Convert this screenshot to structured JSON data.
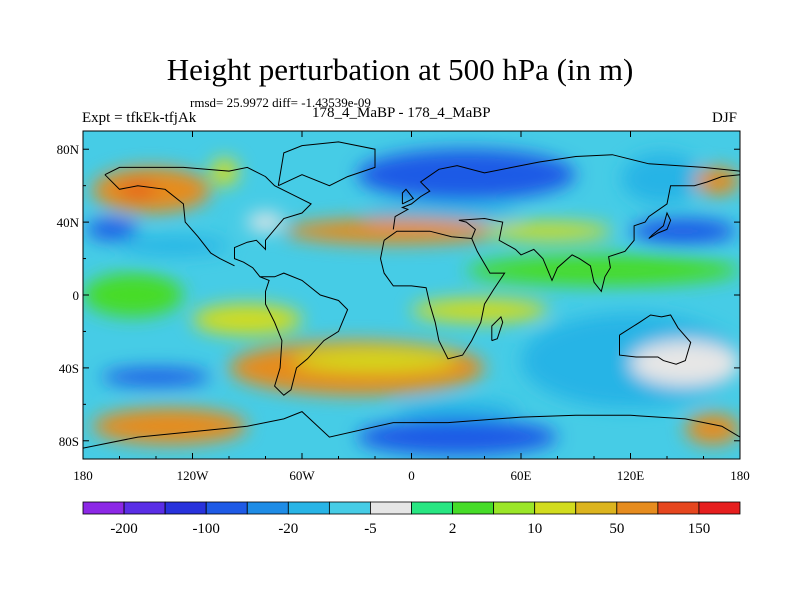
{
  "figure": {
    "title": "Height perturbation at 500 hPa (in m)",
    "stats": "rmsd= 25.9972 diff= -1.43539e-09",
    "left_label": "Expt = tfkEk-tfjAk",
    "center_label": "178_4_MaBP - 178_4_MaBP",
    "right_label": "DJF"
  },
  "chart_data": {
    "type": "heatmap",
    "title": "Height perturbation at 500 hPa (in m)",
    "x_ticks": [
      "180",
      "120W",
      "60W",
      "0",
      "60E",
      "120E",
      "180"
    ],
    "y_ticks": [
      "80N",
      "40N",
      "0",
      "40S",
      "80S"
    ],
    "xlim": [
      -180,
      180
    ],
    "ylim": [
      -90,
      90
    ],
    "x_tick_values": [
      -180,
      -120,
      -60,
      0,
      60,
      120,
      180
    ],
    "y_tick_values": [
      80,
      40,
      0,
      -40,
      -80
    ],
    "grid": false,
    "colorbar": {
      "labels": [
        "-200",
        "-100",
        "-20",
        "-5",
        "2",
        "10",
        "50",
        "150"
      ],
      "colors": [
        "#8c28e6",
        "#5a2ee6",
        "#2832dc",
        "#1e5ae6",
        "#1e8ce6",
        "#28b4e6",
        "#46cce6",
        "#e6e6e6",
        "#28e682",
        "#46dc28",
        "#9be628",
        "#d2dc1e",
        "#dcb41e",
        "#e68c1e",
        "#e6461e",
        "#e61e1e"
      ]
    },
    "regions": [
      {
        "lon": [
          -175,
          -110
        ],
        "lat": [
          70,
          45
        ],
        "level": "50"
      },
      {
        "lon": [
          -160,
          -140
        ],
        "lat": [
          60,
          55
        ],
        "level": "150"
      },
      {
        "lon": [
          -110,
          -95
        ],
        "lat": [
          75,
          60
        ],
        "level": "10"
      },
      {
        "lon": [
          -178,
          -150
        ],
        "lat": [
          42,
          30
        ],
        "level": "-100"
      },
      {
        "lon": [
          -160,
          -100
        ],
        "lat": [
          32,
          22
        ],
        "level": "-20"
      },
      {
        "lon": [
          -90,
          -70
        ],
        "lat": [
          45,
          35
        ],
        "level": "-5"
      },
      {
        "lon": [
          -30,
          90
        ],
        "lat": [
          80,
          52
        ],
        "level": "-100"
      },
      {
        "lon": [
          -25,
          60
        ],
        "lat": [
          50,
          40
        ],
        "level": "-20"
      },
      {
        "lon": [
          -70,
          50
        ],
        "lat": [
          42,
          28
        ],
        "level": "50"
      },
      {
        "lon": [
          40,
          110
        ],
        "lat": [
          40,
          30
        ],
        "level": "10"
      },
      {
        "lon": [
          115,
          160
        ],
        "lat": [
          78,
          50
        ],
        "level": "-20"
      },
      {
        "lon": [
          155,
          180
        ],
        "lat": [
          70,
          55
        ],
        "level": "50"
      },
      {
        "lon": [
          120,
          178
        ],
        "lat": [
          42,
          28
        ],
        "level": "-100"
      },
      {
        "lon": [
          -120,
          -60
        ],
        "lat": [
          -5,
          -22
        ],
        "level": "10"
      },
      {
        "lon": [
          -100,
          40
        ],
        "lat": [
          -25,
          -55
        ],
        "level": "50"
      },
      {
        "lon": [
          -65,
          25
        ],
        "lat": [
          -30,
          -42
        ],
        "level": "10"
      },
      {
        "lon": [
          -170,
          -110
        ],
        "lat": [
          -40,
          -50
        ],
        "level": "-100"
      },
      {
        "lon": [
          -175,
          -90
        ],
        "lat": [
          -62,
          -82
        ],
        "level": "50"
      },
      {
        "lon": [
          -30,
          80
        ],
        "lat": [
          -68,
          -88
        ],
        "level": "-100"
      },
      {
        "lon": [
          -10,
          60
        ],
        "lat": [
          -58,
          -68
        ],
        "level": "-20"
      },
      {
        "lon": [
          0,
          75
        ],
        "lat": [
          -2,
          -15
        ],
        "level": "10"
      },
      {
        "lon": [
          60,
          180
        ],
        "lat": [
          -10,
          -62
        ],
        "level": "-20"
      },
      {
        "lon": [
          120,
          180
        ],
        "lat": [
          -25,
          -50
        ],
        "level": "-5"
      },
      {
        "lon": [
          150,
          180
        ],
        "lat": [
          -65,
          -82
        ],
        "level": "50"
      },
      {
        "lon": [
          -180,
          -125
        ],
        "lat": [
          12,
          -12
        ],
        "level": "2"
      },
      {
        "lon": [
          30,
          180
        ],
        "lat": [
          22,
          5
        ],
        "level": "2"
      }
    ]
  }
}
